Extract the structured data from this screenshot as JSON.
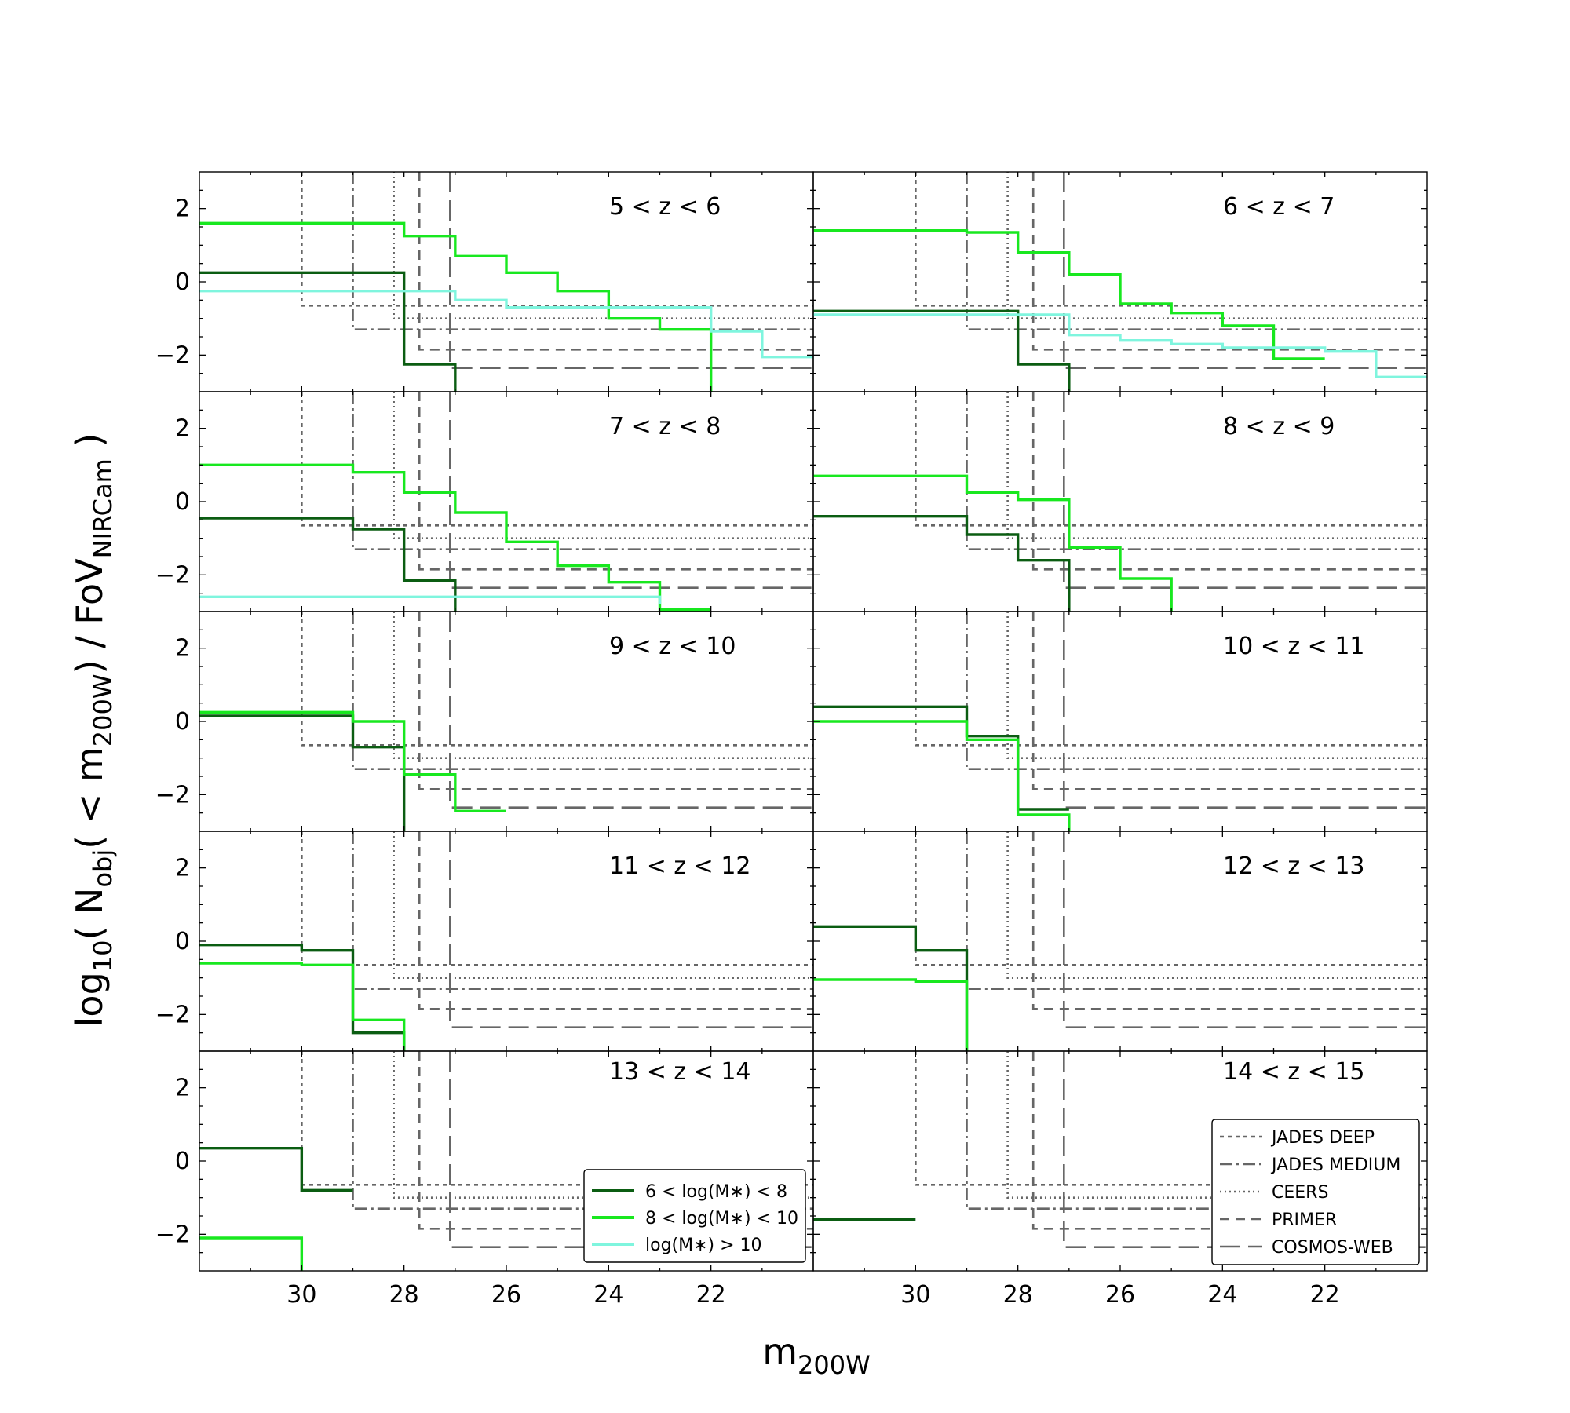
{
  "figure": {
    "ylabel": {
      "pre": "log",
      "sub1": "10",
      "mid1": "( N",
      "sub2": "obj",
      "mid2": "( < m",
      "sub3": "200W",
      "mid3": ") / FoV",
      "sub4": "NIRCam",
      "end": " )"
    },
    "xlabel": {
      "main": "m",
      "sub": "200W"
    }
  },
  "colors": {
    "low_mass": "#0b5d12",
    "mid_mass": "#18e81f",
    "high_mass": "#7ff5de",
    "survey": "#666666"
  },
  "chart_data": {
    "type": "line",
    "xlim": [
      32,
      20
    ],
    "ylim": [
      -3,
      3
    ],
    "xticks": [
      30,
      28,
      26,
      24,
      22
    ],
    "yticks": [
      2,
      0,
      -2
    ],
    "ytick_labels": [
      "2",
      "0",
      "−2"
    ],
    "legend_mass": {
      "placement": "panel 13<z<14, lower right",
      "entries": [
        {
          "label": "6 < log(M∗) < 8",
          "color": "#0b5d12"
        },
        {
          "label": "8 < log(M∗) < 10",
          "color": "#18e81f"
        },
        {
          "label": "log(M∗) > 10",
          "color": "#7ff5de"
        }
      ]
    },
    "legend_surveys": {
      "placement": "panel 14<z<15, lower right",
      "entries": [
        {
          "label": "JADES DEEP",
          "dash": "dotted"
        },
        {
          "label": "JADES MEDIUM",
          "dash": "dashdot"
        },
        {
          "label": "CEERS",
          "dash": "finedot"
        },
        {
          "label": "PRIMER",
          "dash": "dashed"
        },
        {
          "label": "COSMOS-WEB",
          "dash": "longdash"
        }
      ]
    },
    "surveys": [
      {
        "name": "JADES DEEP",
        "mag_limit": 30.0,
        "y_level": -0.65,
        "dash": "dotted"
      },
      {
        "name": "JADES MEDIUM",
        "mag_limit": 29.0,
        "y_level": -1.3,
        "dash": "dashdot"
      },
      {
        "name": "CEERS",
        "mag_limit": 28.2,
        "y_level": -1.0,
        "dash": "finedot"
      },
      {
        "name": "PRIMER",
        "mag_limit": 27.7,
        "y_level": -1.85,
        "dash": "dashed"
      },
      {
        "name": "COSMOS-WEB",
        "mag_limit": 27.1,
        "y_level": -2.35,
        "dash": "longdash"
      }
    ],
    "panels": [
      {
        "label": "5 < z < 6",
        "series": [
          {
            "mass_bin": "low",
            "x": [
              32,
              28,
              27
            ],
            "y": [
              0.25,
              -2.25,
              -3.0
            ]
          },
          {
            "mass_bin": "mid",
            "x": [
              32,
              28,
              27,
              26,
              25,
              24,
              23,
              22
            ],
            "y": [
              1.6,
              1.25,
              0.7,
              0.25,
              -0.25,
              -1.0,
              -1.3,
              -3.0
            ]
          },
          {
            "mass_bin": "high",
            "x": [
              32,
              27,
              26,
              22,
              21,
              20
            ],
            "y": [
              -0.25,
              -0.5,
              -0.7,
              -1.35,
              -2.05,
              -2.05
            ]
          }
        ]
      },
      {
        "label": "6 < z < 7",
        "series": [
          {
            "mass_bin": "low",
            "x": [
              32,
              28,
              27
            ],
            "y": [
              -0.8,
              -2.25,
              -3.0
            ]
          },
          {
            "mass_bin": "mid",
            "x": [
              32,
              29,
              28,
              27,
              26,
              25,
              24,
              23,
              22
            ],
            "y": [
              1.4,
              1.35,
              0.8,
              0.2,
              -0.6,
              -0.85,
              -1.2,
              -2.1,
              -2.1
            ]
          },
          {
            "mass_bin": "high",
            "x": [
              32,
              28,
              27,
              26,
              25,
              24,
              22,
              21,
              20
            ],
            "y": [
              -0.9,
              -0.9,
              -1.45,
              -1.6,
              -1.7,
              -1.8,
              -1.9,
              -2.6,
              -2.6
            ]
          }
        ]
      },
      {
        "label": "7 < z < 8",
        "series": [
          {
            "mass_bin": "low",
            "x": [
              32,
              29,
              28,
              27
            ],
            "y": [
              -0.45,
              -0.75,
              -2.15,
              -3.0
            ]
          },
          {
            "mass_bin": "mid",
            "x": [
              32,
              29,
              28,
              27,
              26,
              25,
              24,
              23,
              22
            ],
            "y": [
              1.0,
              0.8,
              0.25,
              -0.3,
              -1.1,
              -1.75,
              -2.2,
              -2.95,
              -2.95
            ]
          },
          {
            "mass_bin": "high",
            "x": [
              32,
              23
            ],
            "y": [
              -2.6,
              -2.8
            ]
          }
        ]
      },
      {
        "label": "8 < z < 9",
        "series": [
          {
            "mass_bin": "low",
            "x": [
              32,
              29,
              28,
              27
            ],
            "y": [
              -0.4,
              -0.9,
              -1.6,
              -3.0
            ]
          },
          {
            "mass_bin": "mid",
            "x": [
              32,
              29,
              28,
              27,
              26,
              25
            ],
            "y": [
              0.7,
              0.25,
              0.05,
              -1.25,
              -2.1,
              -3.0
            ]
          }
        ]
      },
      {
        "label": "9 < z < 10",
        "series": [
          {
            "mass_bin": "low",
            "x": [
              32,
              29,
              28
            ],
            "y": [
              0.15,
              -0.7,
              -3.0
            ]
          },
          {
            "mass_bin": "mid",
            "x": [
              32,
              29,
              28,
              27,
              26
            ],
            "y": [
              0.25,
              0.0,
              -1.45,
              -2.45,
              -2.45
            ]
          }
        ]
      },
      {
        "label": "10 < z < 11",
        "series": [
          {
            "mass_bin": "low",
            "x": [
              32,
              29,
              28,
              27
            ],
            "y": [
              0.4,
              -0.4,
              -2.4,
              -2.4
            ]
          },
          {
            "mass_bin": "mid",
            "x": [
              32,
              29,
              28,
              27
            ],
            "y": [
              0.0,
              -0.5,
              -2.55,
              -3.0
            ]
          }
        ]
      },
      {
        "label": "11 < z < 12",
        "series": [
          {
            "mass_bin": "low",
            "x": [
              32,
              30,
              29,
              28
            ],
            "y": [
              -0.1,
              -0.25,
              -2.5,
              -3.0
            ]
          },
          {
            "mass_bin": "mid",
            "x": [
              32,
              30,
              29,
              28
            ],
            "y": [
              -0.6,
              -0.65,
              -2.15,
              -3.0
            ]
          }
        ]
      },
      {
        "label": "12 < z < 13",
        "series": [
          {
            "mass_bin": "low",
            "x": [
              32,
              30,
              29
            ],
            "y": [
              0.4,
              -0.25,
              -3.0
            ]
          },
          {
            "mass_bin": "mid",
            "x": [
              32,
              30,
              29
            ],
            "y": [
              -1.05,
              -1.1,
              -3.0
            ]
          }
        ]
      },
      {
        "label": "13 < z < 14",
        "series": [
          {
            "mass_bin": "low",
            "x": [
              32,
              30,
              29
            ],
            "y": [
              0.35,
              -0.8,
              -0.8
            ]
          },
          {
            "mass_bin": "mid",
            "x": [
              32,
              30
            ],
            "y": [
              -2.1,
              -3.0
            ]
          }
        ]
      },
      {
        "label": "14 < z < 15",
        "series": [
          {
            "mass_bin": "low",
            "x": [
              32,
              30
            ],
            "y": [
              -1.6,
              -1.6
            ]
          }
        ]
      }
    ]
  }
}
